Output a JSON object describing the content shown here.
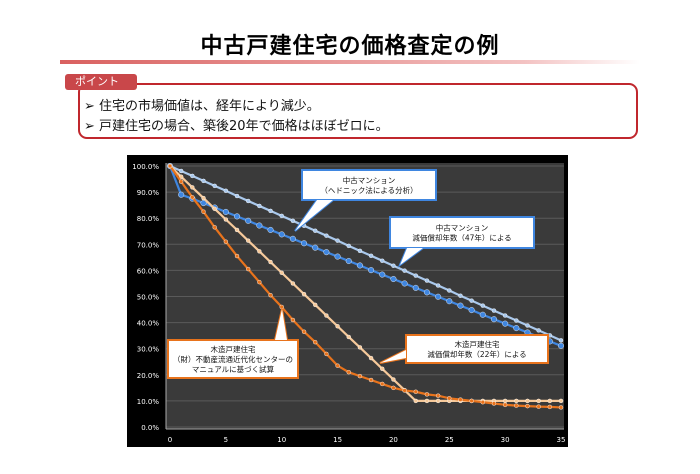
{
  "title": "中古戸建住宅の価格査定の例",
  "point": {
    "tab": "ポイント",
    "items": [
      "➢ 住宅の市場価値は、経年により減少。",
      "➢ 戸建住宅の場合、築後20年で価格はほぼゼロに。"
    ]
  },
  "chart_data": {
    "type": "line",
    "x": [
      0,
      1,
      2,
      3,
      4,
      5,
      6,
      7,
      8,
      9,
      10,
      11,
      12,
      13,
      14,
      15,
      16,
      17,
      18,
      19,
      20,
      21,
      22,
      23,
      24,
      25,
      26,
      27,
      28,
      29,
      30,
      31,
      32,
      33,
      34,
      35
    ],
    "xticks": [
      "0",
      "5",
      "10",
      "15",
      "20",
      "25",
      "30",
      "35"
    ],
    "yticks": [
      "0.0%",
      "10.0%",
      "20.0%",
      "30.0%",
      "40.0%",
      "50.0%",
      "60.0%",
      "70.0%",
      "80.0%",
      "90.0%",
      "100.0%"
    ],
    "xlim": [
      0,
      35
    ],
    "ylim": [
      0,
      100
    ],
    "grid": true,
    "series": [
      {
        "name": "中古マンション（ヘドニック法による分析）",
        "color": "#a9c8ec",
        "values": [
          100,
          98.1,
          96.2,
          94.3,
          92.4,
          90.5,
          88.5,
          86.6,
          84.7,
          82.8,
          80.9,
          79,
          77.1,
          75.2,
          73.3,
          71.4,
          69.4,
          67.5,
          65.6,
          63.7,
          61.8,
          59.9,
          58,
          56.1,
          54.2,
          52.3,
          50.3,
          48.4,
          46.5,
          44.6,
          42.7,
          40.8,
          38.9,
          37,
          35.1,
          33.2
        ]
      },
      {
        "name": "中古マンション 減価償却年数（47年）による",
        "color": "#3f86e0",
        "values": [
          100,
          89,
          87.5,
          85.8,
          84.1,
          82.4,
          80.7,
          79,
          77.2,
          75.5,
          73.8,
          72.1,
          70.4,
          68.7,
          67,
          65.3,
          63.6,
          61.9,
          60.1,
          58.4,
          56.7,
          55,
          53.3,
          51.6,
          49.9,
          48.2,
          46.5,
          44.8,
          43,
          41.3,
          39.6,
          37.9,
          36.2,
          34.5,
          32.8,
          31.1
        ]
      },
      {
        "name": "木造戸建住宅 減価償却年数（22年）による",
        "color": "#f6c99a",
        "values": [
          100,
          95.9,
          91.8,
          87.7,
          83.6,
          79.5,
          75.5,
          71.4,
          67.3,
          63.2,
          59.1,
          55,
          50.9,
          46.8,
          42.7,
          38.6,
          34.5,
          30.5,
          26.4,
          22.3,
          18.2,
          14.1,
          10,
          10,
          10,
          10,
          10,
          10,
          10,
          10,
          10,
          10,
          10,
          10,
          10,
          10
        ]
      },
      {
        "name": "木造戸建住宅 （財）不動産流通近代化センターのマニュアルに基づく試算",
        "color": "#e8731c",
        "values": [
          100,
          94,
          88,
          82.5,
          76.5,
          71,
          65.5,
          60.5,
          55.5,
          50.5,
          46,
          41,
          36.5,
          32.5,
          28,
          23.5,
          21,
          19.5,
          18,
          16.5,
          15,
          14,
          13.5,
          12.5,
          12,
          11,
          10.5,
          10,
          9.5,
          9,
          8.5,
          8.2,
          8,
          7.8,
          7.7,
          7.5
        ]
      }
    ],
    "annotations": [
      {
        "lines": [
          "中古マンション",
          "（ヘドニック法による分析）"
        ],
        "color": "#3f86e0"
      },
      {
        "lines": [
          "中古マンション",
          "減価償却年数（47年）による"
        ],
        "color": "#3f86e0"
      },
      {
        "lines": [
          "木造戸建住宅",
          "（財）不動産流通近代化センターの",
          "マニュアルに基づく試算"
        ],
        "color": "#e8731c"
      },
      {
        "lines": [
          "木造戸建住宅",
          "減価償却年数（22年）による"
        ],
        "color": "#e8731c"
      }
    ]
  }
}
